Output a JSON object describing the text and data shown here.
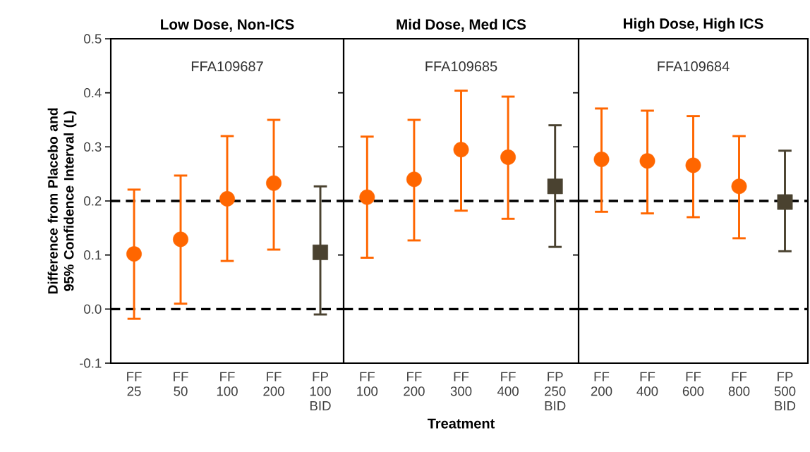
{
  "chart_data": [
    {
      "type": "scatter",
      "title": "Low Dose, Non-ICS",
      "ylabel": "Difference from Placebo and 95% Confidence Interval (L)",
      "categories": [
        "FF 25",
        "FF 50",
        "FF 100",
        "FF 200",
        "FP 100 BID"
      ],
      "series": [
        {
          "color": "#ff6600",
          "marker": "circle",
          "values": [
            0.102,
            0.129,
            0.204,
            0.233,
            null
          ],
          "errors": [
            [
              -0.018,
              0.221
            ],
            [
              0.01,
              0.247
            ],
            [
              0.089,
              0.32
            ],
            [
              0.11,
              0.35
            ],
            null
          ]
        },
        {
          "color": "#4a4230",
          "marker": "square",
          "values": [
            null,
            null,
            null,
            null,
            0.105
          ],
          "errors": [
            null,
            null,
            null,
            null,
            [
              -0.01,
              0.227
            ]
          ]
        }
      ],
      "ylim": [
        -0.1,
        0.5
      ],
      "yticks": [
        -0.1,
        {
          "value": 0,
          "label": "0.0"
        },
        0.1,
        0.2,
        0.3,
        0.4,
        0.5
      ],
      "ref_lines": [
        {
          "axis": "y",
          "value": 0.2,
          "line_style": "dashed",
          "color": "#000000"
        },
        {
          "axis": "y",
          "value": 0,
          "line_style": "dashed",
          "color": "#000000"
        }
      ],
      "annotations": [
        "FFA109687"
      ]
    },
    {
      "type": "scatter",
      "title": "Mid Dose, Med ICS",
      "xlabel": "Treatment",
      "categories": [
        "FF 100",
        "FF 200",
        "FF 300",
        "FF 400",
        "FP 250 BID"
      ],
      "series": [
        {
          "color": "#ff6600",
          "marker": "circle",
          "values": [
            0.207,
            0.24,
            0.295,
            0.281,
            null
          ],
          "errors": [
            [
              0.095,
              0.319
            ],
            [
              0.127,
              0.35
            ],
            [
              0.182,
              0.404
            ],
            [
              0.167,
              0.393
            ],
            null
          ]
        },
        {
          "color": "#4a4230",
          "marker": "square",
          "values": [
            null,
            null,
            null,
            null,
            0.227
          ],
          "errors": [
            null,
            null,
            null,
            null,
            [
              0.115,
              0.34
            ]
          ]
        }
      ],
      "ylim": [
        -0.1,
        0.5
      ],
      "yticks": [
        -0.1,
        0,
        0.1,
        0.2,
        0.3,
        0.4,
        0.5
      ],
      "tick_labels": "x",
      "ref_lines": [
        {
          "axis": "y",
          "value": 0.2,
          "line_style": "dashed",
          "color": "#000000"
        },
        {
          "axis": "y",
          "value": 0,
          "line_style": "dashed",
          "color": "#000000"
        }
      ],
      "annotations": [
        "FFA109685"
      ]
    },
    {
      "type": "scatter",
      "title": "High Dose,  High ICS",
      "categories": [
        "FF 200",
        "FF 400",
        "FF 600",
        "FF 800",
        "FP 500 BID"
      ],
      "series": [
        {
          "color": "#ff6600",
          "marker": "circle",
          "values": [
            0.277,
            0.274,
            0.266,
            0.227,
            null
          ],
          "errors": [
            [
              0.18,
              0.371
            ],
            [
              0.177,
              0.367
            ],
            [
              0.17,
              0.357
            ],
            [
              0.131,
              0.32
            ],
            null
          ]
        },
        {
          "color": "#4a4230",
          "marker": "square",
          "values": [
            null,
            null,
            null,
            null,
            0.198
          ],
          "errors": [
            null,
            null,
            null,
            null,
            [
              0.107,
              0.293
            ]
          ]
        }
      ],
      "ylim": [
        -0.1,
        0.5
      ],
      "yticks": [
        -0.1,
        0,
        0.1,
        0.2,
        0.3,
        0.4,
        0.5
      ],
      "tick_labels": "x",
      "ref_lines": [
        {
          "axis": "y",
          "value": 0.2,
          "line_style": "dashed",
          "color": "#000000"
        },
        {
          "axis": "y",
          "value": 0,
          "line_style": "dashed",
          "color": "#000000"
        }
      ],
      "annotations": [
        "FFA109684"
      ]
    }
  ]
}
